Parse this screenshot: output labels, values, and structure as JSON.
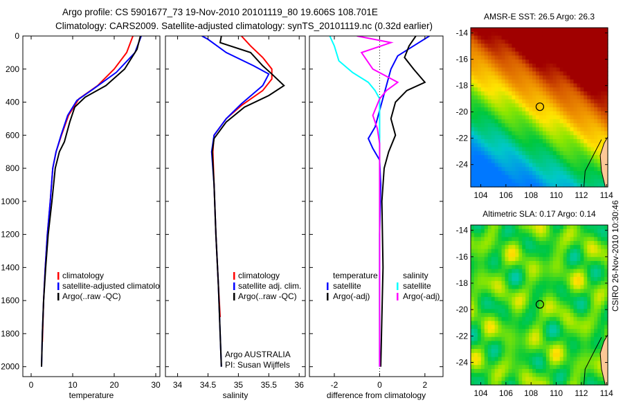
{
  "title_line1": "Argo profile: CS 5901677_73 19-Nov-2010 20101119_80 19.606S 108.701E",
  "title_line2": "Climatology: CARS2009. Satellite-adjusted climatology: synTS_20101119.nc (0.32d earlier)",
  "timestamp": "CSIRO 26-Nov-2010 10:30:46",
  "colors": {
    "climatology": "#ff0000",
    "satellite": "#0000ff",
    "argo": "#000000",
    "sal_satellite": "#00ffff",
    "sal_argo": "#ff00ff",
    "land": "#fcc896"
  },
  "chart_data": [
    {
      "type": "line",
      "xlabel": "temperature",
      "ylabel": "depth",
      "xlim": [
        -2,
        31
      ],
      "ylim": [
        2060,
        0
      ],
      "xticks": [
        0,
        10,
        20,
        30
      ],
      "yticks": [
        0,
        200,
        400,
        600,
        800,
        1000,
        1200,
        1400,
        1600,
        1800,
        2000
      ],
      "legend": [
        "climatology",
        "satellite-adjusted climatology",
        "Argo(..raw -QC)"
      ],
      "series": [
        {
          "name": "climatology",
          "color": "#ff0000",
          "points": [
            [
              24.5,
              0
            ],
            [
              23,
              100
            ],
            [
              20,
              200
            ],
            [
              16,
              300
            ],
            [
              11.5,
              380
            ],
            [
              9,
              480
            ],
            [
              7.3,
              600
            ],
            [
              6,
              700
            ],
            [
              5.2,
              800
            ],
            [
              4.6,
              1000
            ],
            [
              3.9,
              1200
            ],
            [
              3.4,
              1400
            ],
            [
              3,
              1600
            ],
            [
              2.7,
              1850
            ]
          ]
        },
        {
          "name": "satellite-adjusted climatology",
          "color": "#0000ff",
          "points": [
            [
              26.5,
              0
            ],
            [
              25,
              100
            ],
            [
              20.5,
              220
            ],
            [
              15,
              320
            ],
            [
              11,
              390
            ],
            [
              8.8,
              480
            ],
            [
              7.2,
              600
            ],
            [
              6,
              700
            ],
            [
              5.2,
              800
            ],
            [
              4.6,
              1000
            ],
            [
              3.9,
              1200
            ],
            [
              3.4,
              1400
            ],
            [
              3,
              1600
            ],
            [
              2.7,
              1800
            ],
            [
              2.5,
              2000
            ]
          ]
        },
        {
          "name": "Argo(..raw -QC)",
          "color": "#000000",
          "points": [
            [
              26.3,
              0
            ],
            [
              25.5,
              80
            ],
            [
              22.5,
              200
            ],
            [
              18,
              300
            ],
            [
              13,
              370
            ],
            [
              10.5,
              430
            ],
            [
              9.3,
              520
            ],
            [
              8,
              640
            ],
            [
              6.8,
              700
            ],
            [
              5.8,
              800
            ],
            [
              5,
              1000
            ],
            [
              4.1,
              1200
            ],
            [
              3.5,
              1400
            ],
            [
              3,
              1600
            ],
            [
              2.7,
              1800
            ],
            [
              2.5,
              2000
            ]
          ]
        }
      ]
    },
    {
      "type": "line",
      "xlabel": "salinity",
      "ylabel": "depth",
      "xlim": [
        33.8,
        36.1
      ],
      "ylim": [
        2060,
        0
      ],
      "xticks": [
        34,
        34.5,
        35,
        35.5,
        36
      ],
      "legend": [
        "climatology",
        "satellite adj. clim.",
        "Argo(..raw -QC)"
      ],
      "annotation": [
        "Argo AUSTRALIA",
        "PI: Susan Wijffels"
      ],
      "series": [
        {
          "name": "climatology",
          "color": "#ff0000",
          "points": [
            [
              35.05,
              0
            ],
            [
              35.2,
              60
            ],
            [
              35.4,
              130
            ],
            [
              35.55,
              200
            ],
            [
              35.55,
              260
            ],
            [
              35.4,
              330
            ],
            [
              35.05,
              420
            ],
            [
              34.8,
              500
            ],
            [
              34.6,
              600
            ],
            [
              34.58,
              700
            ],
            [
              34.6,
              900
            ],
            [
              34.63,
              1200
            ],
            [
              34.67,
              1500
            ],
            [
              34.7,
              1700
            ]
          ]
        },
        {
          "name": "satellite adj. clim.",
          "color": "#0000ff",
          "points": [
            [
              34.4,
              0
            ],
            [
              34.5,
              20
            ],
            [
              34.8,
              100
            ],
            [
              35.25,
              180
            ],
            [
              35.5,
              230
            ],
            [
              35.4,
              300
            ],
            [
              35.05,
              410
            ],
            [
              34.8,
              500
            ],
            [
              34.6,
              600
            ],
            [
              34.56,
              700
            ],
            [
              34.6,
              900
            ],
            [
              34.63,
              1200
            ],
            [
              34.67,
              1500
            ],
            [
              34.7,
              1800
            ],
            [
              34.72,
              2000
            ]
          ]
        },
        {
          "name": "Argo(..raw -QC)",
          "color": "#000000",
          "points": [
            [
              34.72,
              0
            ],
            [
              34.7,
              40
            ],
            [
              35.2,
              100
            ],
            [
              35.4,
              180
            ],
            [
              35.55,
              230
            ],
            [
              35.75,
              300
            ],
            [
              35.5,
              360
            ],
            [
              35.1,
              430
            ],
            [
              34.8,
              520
            ],
            [
              34.6,
              620
            ],
            [
              34.57,
              700
            ],
            [
              34.6,
              900
            ],
            [
              34.63,
              1200
            ],
            [
              34.67,
              1500
            ],
            [
              34.7,
              1800
            ],
            [
              34.72,
              2000
            ]
          ]
        }
      ]
    },
    {
      "type": "line",
      "xlabel": "difference from climatology",
      "ylabel": "depth",
      "xlim": [
        -3.1,
        2.8
      ],
      "ylim": [
        2060,
        0
      ],
      "xticks": [
        -2,
        0,
        2
      ],
      "legend": {
        "temperature": [
          "satellite",
          "Argo(-adj)"
        ],
        "salinity": [
          "satellite",
          "Argo(-adj)"
        ],
        "headers": [
          "temperature",
          "salinity"
        ]
      },
      "series": [
        {
          "name": "temperature satellite",
          "color": "#0000ff",
          "points": [
            [
              2.2,
              0
            ],
            [
              1.5,
              60
            ],
            [
              0.8,
              120
            ],
            [
              0.5,
              200
            ],
            [
              0.3,
              300
            ],
            [
              0.1,
              400
            ],
            [
              -0.2,
              550
            ],
            [
              -0.5,
              620
            ],
            [
              -0.3,
              680
            ],
            [
              0,
              750
            ],
            [
              0.05,
              900
            ],
            [
              0,
              1200
            ],
            [
              0,
              2000
            ]
          ]
        },
        {
          "name": "salinity satellite",
          "color": "#00ffff",
          "points": [
            [
              -2.2,
              0
            ],
            [
              -2,
              60
            ],
            [
              -1.8,
              150
            ],
            [
              -1.2,
              220
            ],
            [
              -0.5,
              280
            ],
            [
              -0.2,
              330
            ],
            [
              0,
              380
            ],
            [
              0,
              2000
            ]
          ]
        },
        {
          "name": "temperature Argo(-adj)",
          "color": "#000000",
          "points": [
            [
              1.6,
              0
            ],
            [
              1.3,
              60
            ],
            [
              1.1,
              130
            ],
            [
              1.5,
              200
            ],
            [
              2.0,
              280
            ],
            [
              1.2,
              330
            ],
            [
              0.7,
              400
            ],
            [
              0.5,
              500
            ],
            [
              0.7,
              600
            ],
            [
              0.4,
              700
            ],
            [
              0.2,
              800
            ],
            [
              0.1,
              1000
            ],
            [
              0.15,
              1400
            ],
            [
              0.1,
              1700
            ],
            [
              0.05,
              2000
            ]
          ]
        },
        {
          "name": "salinity Argo(-adj)",
          "color": "#ff00ff",
          "points": [
            [
              -1,
              0
            ],
            [
              0.5,
              40
            ],
            [
              -0.8,
              100
            ],
            [
              -0.3,
              200
            ],
            [
              0.8,
              280
            ],
            [
              0.3,
              330
            ],
            [
              0,
              380
            ],
            [
              -0.3,
              480
            ],
            [
              -0.1,
              560
            ],
            [
              0,
              650
            ],
            [
              0,
              2000
            ]
          ]
        }
      ]
    }
  ],
  "maps": [
    {
      "title": "AMSR-E SST: 26.5 Argo: 26.3",
      "xticks": [
        "104",
        "106",
        "108",
        "110",
        "112",
        "114"
      ],
      "yticks": [
        "-14",
        "-16",
        "-18",
        "-20",
        "-22",
        "-24"
      ],
      "argo_lon": 108.701,
      "argo_lat": -19.606
    },
    {
      "title": "Altimetric SLA: 0.17 Argo: 0.14",
      "xticks": [
        "104",
        "106",
        "108",
        "110",
        "112",
        "114"
      ],
      "yticks": [
        "-14",
        "-16",
        "-18",
        "-20",
        "-22",
        "-24"
      ],
      "argo_lon": 108.701,
      "argo_lat": -19.606
    }
  ],
  "ytick_labels": [
    "0",
    "200",
    "400",
    "600",
    "800",
    "1000",
    "1200",
    "1400",
    "1600",
    "1800",
    "2000"
  ]
}
